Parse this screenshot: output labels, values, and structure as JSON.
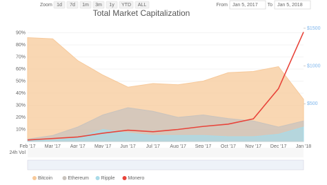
{
  "chart_data": {
    "type": "area",
    "title": "Total Market Capitalization",
    "zoom_label": "Zoom",
    "zoom_buttons": [
      "1d",
      "7d",
      "1m",
      "3m",
      "1y",
      "YTD",
      "ALL"
    ],
    "active_zoom": "1y",
    "from_label": "From",
    "from_date": "Jan 5, 2017",
    "to_label": "To",
    "to_date": "Jan 5, 2018",
    "volume_label": "24h Vol",
    "categories": [
      "Feb '17",
      "Mar '17",
      "Apr '17",
      "May '17",
      "Jun '17",
      "Jul '17",
      "Aug '17",
      "Sep '17",
      "Oct '17",
      "Nov '17",
      "Dec '17",
      "Jan '18"
    ],
    "ylim": [
      0,
      100
    ],
    "yticks": [
      {
        "value": 10,
        "label": "10%"
      },
      {
        "value": 20,
        "label": "20%"
      },
      {
        "value": 30,
        "label": "30%"
      },
      {
        "value": 40,
        "label": "40%"
      },
      {
        "value": 50,
        "label": "50%"
      },
      {
        "value": 60,
        "label": "60%"
      },
      {
        "value": 70,
        "label": "70%"
      },
      {
        "value": 80,
        "label": "80%"
      },
      {
        "value": 90,
        "label": "90%"
      }
    ],
    "y2lim": [
      0,
      1600
    ],
    "y2ticks": [
      {
        "value": 500,
        "label": "$500"
      },
      {
        "value": 1000,
        "label": "$1000"
      },
      {
        "value": 1500,
        "label": "$1500"
      }
    ],
    "grid": true,
    "series": [
      {
        "name": "Bitcoin",
        "color": "#f7c99a",
        "values": [
          86,
          85,
          67,
          55,
          45,
          48,
          47,
          50,
          57,
          58,
          62,
          35
        ]
      },
      {
        "name": "Ethereum",
        "color": "#c9c3bd",
        "values": [
          2,
          5,
          12,
          22,
          28,
          25,
          20,
          22,
          19,
          17,
          12,
          17
        ]
      },
      {
        "name": "Ripple",
        "color": "#a9dbe8",
        "values": [
          1,
          1,
          3,
          10,
          7,
          5,
          5,
          5,
          4,
          4,
          6,
          12
        ]
      },
      {
        "name": "Monero",
        "color": "#e8443a",
        "axis": "y2",
        "values": [
          20,
          40,
          60,
          110,
          150,
          130,
          160,
          200,
          230,
          300,
          700,
          1450
        ]
      }
    ]
  }
}
